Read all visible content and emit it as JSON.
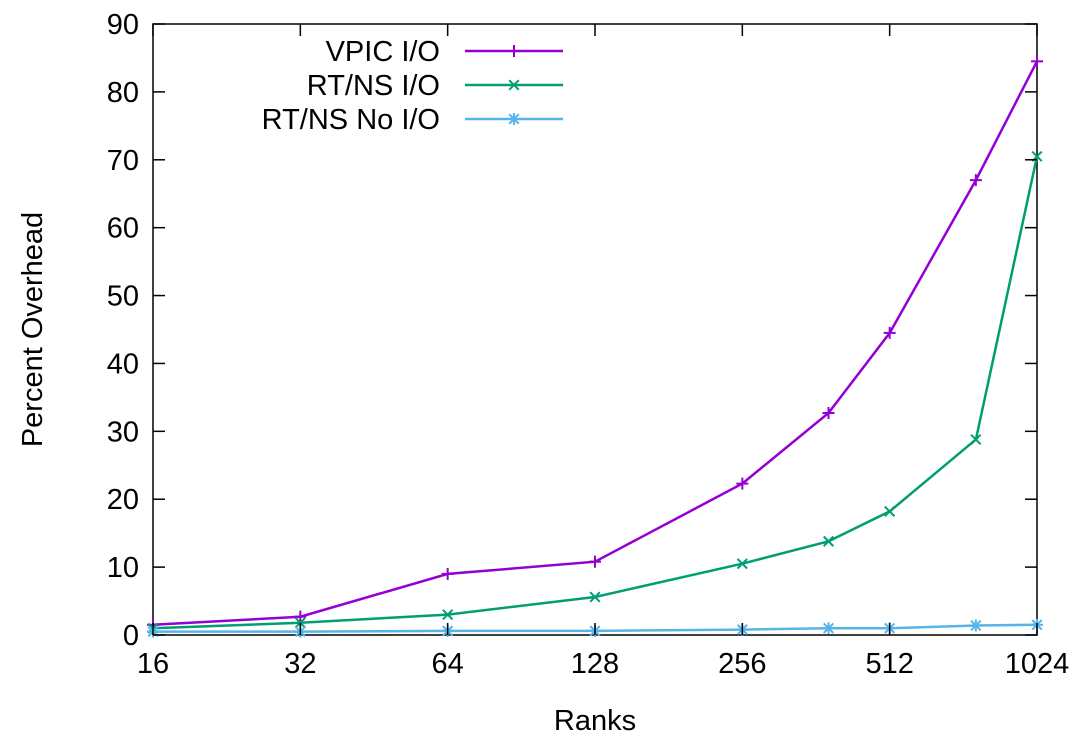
{
  "chart_data": {
    "type": "line",
    "title": "",
    "xlabel": "Ranks",
    "ylabel": "Percent Overhead",
    "x_scale": "log2",
    "xlim": [
      16,
      1024
    ],
    "ylim": [
      0,
      90
    ],
    "x_ticks": [
      "16",
      "32",
      "64",
      "128",
      "256",
      "512",
      "1024"
    ],
    "y_ticks": [
      "0",
      "10",
      "20",
      "30",
      "40",
      "50",
      "60",
      "70",
      "80",
      "90"
    ],
    "grid": false,
    "legend_position": "top-left",
    "series": [
      {
        "name": "VPIC I/O",
        "color": "#9400d3",
        "marker": "plus",
        "x": [
          16,
          32,
          64,
          128,
          256,
          384,
          512,
          768,
          1024
        ],
        "y": [
          1.5,
          2.7,
          9.0,
          10.8,
          22.3,
          32.7,
          44.5,
          67.0,
          84.5
        ]
      },
      {
        "name": "RT/NS I/O",
        "color": "#009e73",
        "marker": "x",
        "x": [
          16,
          32,
          64,
          128,
          256,
          384,
          512,
          768,
          1024
        ],
        "y": [
          1.0,
          1.8,
          3.0,
          5.6,
          10.5,
          13.8,
          18.2,
          28.8,
          70.5
        ]
      },
      {
        "name": "RT/NS No I/O",
        "color": "#56b4e9",
        "marker": "star",
        "x": [
          16,
          32,
          64,
          128,
          256,
          384,
          512,
          768,
          1024
        ],
        "y": [
          0.5,
          0.5,
          0.6,
          0.6,
          0.8,
          1.0,
          1.0,
          1.4,
          1.5
        ]
      }
    ]
  }
}
